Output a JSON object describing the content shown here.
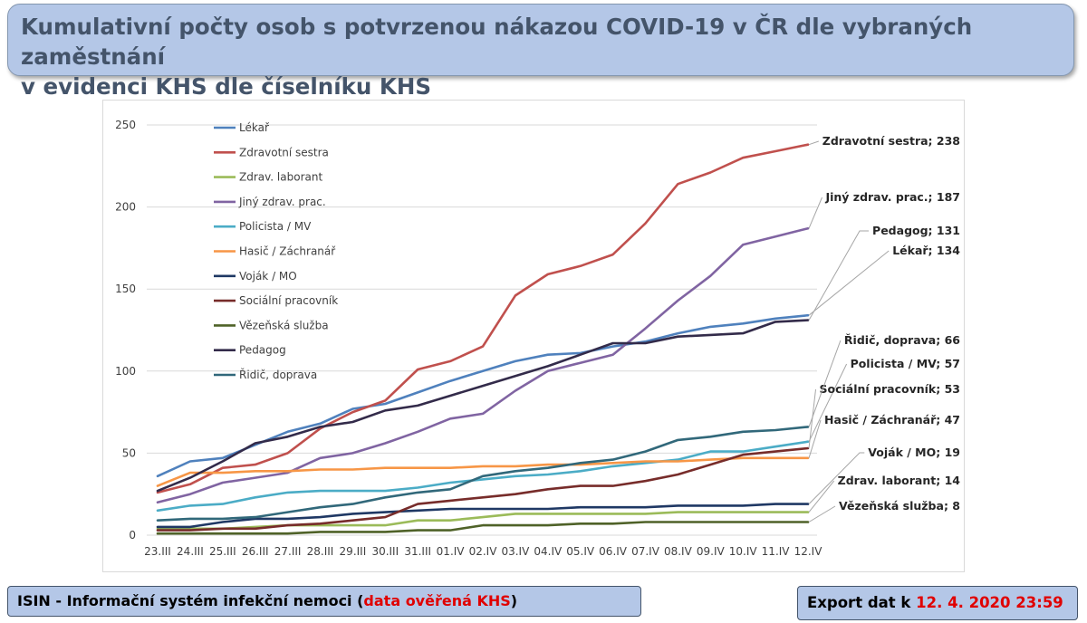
{
  "header": {
    "title_line1": "Kumulativní počty osob s potvrzenou nákazou COVID-19 v ČR dle vybraných zaměstnání",
    "title_line2": "v evidenci KHS dle číselníku KHS"
  },
  "footer": {
    "source_prefix": "ISIN - Informační systém infekční nemoci (",
    "source_highlight": "data ověřená KHS",
    "source_suffix": ")",
    "export_prefix": "Export dat k ",
    "export_datetime": "12. 4. 2020 23:59",
    "highlight_color": "#e00000"
  },
  "chart_data": {
    "type": "line",
    "title": "",
    "xlabel": "",
    "ylabel": "",
    "ylim": [
      0,
      250
    ],
    "yticks": [
      0,
      50,
      100,
      150,
      200,
      250
    ],
    "grid": true,
    "legend_position": "top-left",
    "categories": [
      "23.III",
      "24.III",
      "25.III",
      "26.III",
      "27.III",
      "28.III",
      "29.III",
      "30.III",
      "31.III",
      "01.IV",
      "02.IV",
      "03.IV",
      "04.IV",
      "05.IV",
      "06.IV",
      "07.IV",
      "08.IV",
      "09.IV",
      "10.IV",
      "11.IV",
      "12.IV"
    ],
    "series": [
      {
        "name": "Lékař",
        "color": "#4f81bd",
        "label": "Lékař; 134",
        "values": [
          36,
          45,
          47,
          55,
          63,
          68,
          77,
          80,
          87,
          94,
          100,
          106,
          110,
          111,
          115,
          118,
          123,
          127,
          129,
          132,
          134
        ]
      },
      {
        "name": "Zdravotní sestra",
        "color": "#c0504d",
        "label": "Zdravotní sestra; 238",
        "values": [
          26,
          31,
          41,
          43,
          50,
          65,
          75,
          82,
          101,
          106,
          115,
          146,
          159,
          164,
          171,
          190,
          214,
          221,
          230,
          234,
          238
        ]
      },
      {
        "name": "Zdrav. laborant",
        "color": "#9bbb59",
        "label": "Zdrav. laborant; 14",
        "values": [
          4,
          4,
          4,
          5,
          6,
          6,
          6,
          6,
          9,
          9,
          11,
          13,
          13,
          13,
          13,
          13,
          14,
          14,
          14,
          14,
          14
        ]
      },
      {
        "name": "Jiný zdrav. prac.",
        "color": "#8064a2",
        "label": "Jiný zdrav. prac.; 187",
        "values": [
          20,
          25,
          32,
          35,
          38,
          47,
          50,
          56,
          63,
          71,
          74,
          88,
          100,
          105,
          110,
          126,
          143,
          158,
          177,
          182,
          187
        ]
      },
      {
        "name": "Policista / MV",
        "color": "#4bacc6",
        "label": "Policista / MV; 57",
        "values": [
          15,
          18,
          19,
          23,
          26,
          27,
          27,
          27,
          29,
          32,
          34,
          36,
          37,
          39,
          42,
          44,
          46,
          51,
          51,
          54,
          57
        ]
      },
      {
        "name": "Hasič / Záchranář",
        "color": "#f79646",
        "label": "Hasič / Záchranář; 47",
        "values": [
          30,
          38,
          38,
          39,
          39,
          40,
          40,
          41,
          41,
          41,
          42,
          42,
          43,
          43,
          44,
          45,
          45,
          46,
          47,
          47,
          47
        ]
      },
      {
        "name": "Voják / MO",
        "color": "#1f3864",
        "label": "Voják / MO; 19",
        "values": [
          5,
          5,
          8,
          10,
          10,
          11,
          13,
          14,
          15,
          16,
          16,
          16,
          16,
          17,
          17,
          17,
          18,
          18,
          18,
          19,
          19
        ]
      },
      {
        "name": "Sociální pracovník",
        "color": "#772c2a",
        "label": "Sociální pracovník; 53",
        "values": [
          3,
          3,
          4,
          4,
          6,
          7,
          9,
          11,
          19,
          21,
          23,
          25,
          28,
          30,
          30,
          33,
          37,
          43,
          49,
          51,
          53
        ]
      },
      {
        "name": "Vězeňská služba",
        "color": "#4f6228",
        "label": "Vězeňská služba; 8",
        "values": [
          1,
          1,
          1,
          1,
          1,
          2,
          2,
          2,
          3,
          3,
          6,
          6,
          6,
          7,
          7,
          8,
          8,
          8,
          8,
          8,
          8
        ]
      },
      {
        "name": "Pedagog",
        "color": "#332b4a",
        "label": "Pedagog; 131",
        "values": [
          27,
          35,
          45,
          56,
          60,
          66,
          69,
          76,
          79,
          85,
          91,
          97,
          103,
          110,
          117,
          117,
          121,
          122,
          123,
          130,
          131
        ]
      },
      {
        "name": "Řidič, doprava",
        "color": "#31687a",
        "label": "Řidič, doprava; 66",
        "values": [
          9,
          10,
          10,
          11,
          14,
          17,
          19,
          23,
          26,
          28,
          36,
          39,
          41,
          44,
          46,
          51,
          58,
          60,
          63,
          64,
          66
        ]
      }
    ]
  }
}
